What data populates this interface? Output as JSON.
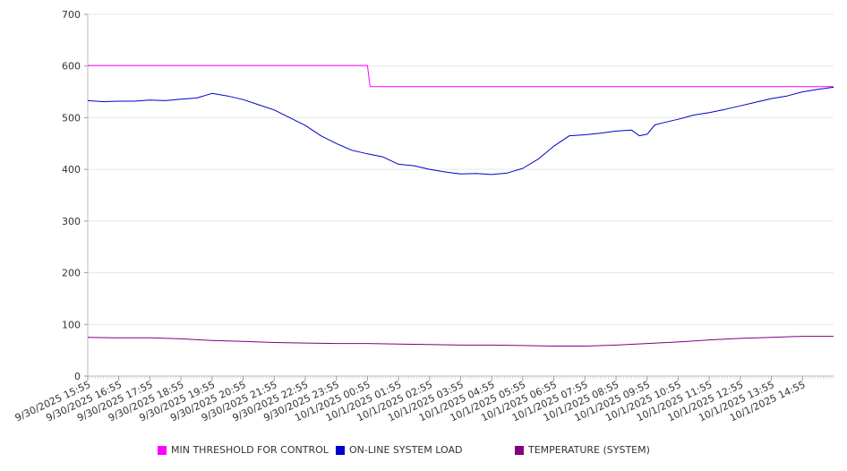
{
  "chart_data": {
    "type": "line",
    "title": "",
    "xlabel": "",
    "ylabel": "",
    "ylim": [
      0,
      700
    ],
    "yticks": [
      0,
      100,
      200,
      300,
      400,
      500,
      600,
      700
    ],
    "grid": true,
    "legend_position": "bottom",
    "x_start": "9/30/2025 15:55",
    "x_end": "10/1/2025 15:55",
    "x_tick_labels": [
      "9/30/2025 15:55",
      "9/30/2025 16:55",
      "9/30/2025 17:55",
      "9/30/2025 18:55",
      "9/30/2025 19:55",
      "9/30/2025 20:55",
      "9/30/2025 21:55",
      "9/30/2025 22:55",
      "9/30/2025 23:55",
      "10/1/2025 00:55",
      "10/1/2025 01:55",
      "10/1/2025 02:55",
      "10/1/2025 03:55",
      "10/1/2025 04:55",
      "10/1/2025 05:55",
      "10/1/2025 06:55",
      "10/1/2025 07:55",
      "10/1/2025 08:55",
      "10/1/2025 09:55",
      "10/1/2025 10:55",
      "10/1/2025 11:55",
      "10/1/2025 12:55",
      "10/1/2025 13:55",
      "10/1/2025 14:55"
    ],
    "series": [
      {
        "name": "MIN THRESHOLD FOR CONTROL",
        "color": "#ff00ff",
        "points": [
          [
            "9/30/2025 15:55",
            601
          ],
          [
            "10/1/2025 00:55",
            601
          ],
          [
            "10/1/2025 01:00",
            560
          ],
          [
            "10/1/2025 15:55",
            560
          ]
        ]
      },
      {
        "name": "ON-LINE SYSTEM LOAD",
        "color": "#0000cc",
        "points": [
          [
            "9/30/2025 15:55",
            533
          ],
          [
            "9/30/2025 16:25",
            531
          ],
          [
            "9/30/2025 16:55",
            532
          ],
          [
            "9/30/2025 17:25",
            532
          ],
          [
            "9/30/2025 17:55",
            534
          ],
          [
            "9/30/2025 18:25",
            533
          ],
          [
            "9/30/2025 18:55",
            536
          ],
          [
            "9/30/2025 19:25",
            538
          ],
          [
            "9/30/2025 19:55",
            547
          ],
          [
            "9/30/2025 20:25",
            542
          ],
          [
            "9/30/2025 20:55",
            535
          ],
          [
            "9/30/2025 21:25",
            525
          ],
          [
            "9/30/2025 21:55",
            515
          ],
          [
            "9/30/2025 22:25",
            500
          ],
          [
            "9/30/2025 22:55",
            485
          ],
          [
            "9/30/2025 23:25",
            465
          ],
          [
            "9/30/2025 23:55",
            450
          ],
          [
            "10/1/2025 00:25",
            437
          ],
          [
            "10/1/2025 00:55",
            430
          ],
          [
            "10/1/2025 01:25",
            424
          ],
          [
            "10/1/2025 01:55",
            410
          ],
          [
            "10/1/2025 02:25",
            407
          ],
          [
            "10/1/2025 02:55",
            400
          ],
          [
            "10/1/2025 03:25",
            395
          ],
          [
            "10/1/2025 03:55",
            391
          ],
          [
            "10/1/2025 04:25",
            392
          ],
          [
            "10/1/2025 04:55",
            390
          ],
          [
            "10/1/2025 05:25",
            393
          ],
          [
            "10/1/2025 05:55",
            402
          ],
          [
            "10/1/2025 06:25",
            420
          ],
          [
            "10/1/2025 06:55",
            445
          ],
          [
            "10/1/2025 07:25",
            465
          ],
          [
            "10/1/2025 07:55",
            467
          ],
          [
            "10/1/2025 08:25",
            470
          ],
          [
            "10/1/2025 08:55",
            474
          ],
          [
            "10/1/2025 09:25",
            476
          ],
          [
            "10/1/2025 09:40",
            465
          ],
          [
            "10/1/2025 09:55",
            468
          ],
          [
            "10/1/2025 10:10",
            486
          ],
          [
            "10/1/2025 10:25",
            490
          ],
          [
            "10/1/2025 10:55",
            497
          ],
          [
            "10/1/2025 11:25",
            505
          ],
          [
            "10/1/2025 11:55",
            510
          ],
          [
            "10/1/2025 12:25",
            516
          ],
          [
            "10/1/2025 12:55",
            523
          ],
          [
            "10/1/2025 13:25",
            530
          ],
          [
            "10/1/2025 13:55",
            537
          ],
          [
            "10/1/2025 14:25",
            542
          ],
          [
            "10/1/2025 14:55",
            550
          ],
          [
            "10/1/2025 15:25",
            555
          ],
          [
            "10/1/2025 15:55",
            559
          ]
        ]
      },
      {
        "name": "TEMPERATURE (SYSTEM)",
        "color": "#800080",
        "points": [
          [
            "9/30/2025 15:55",
            75
          ],
          [
            "9/30/2025 16:55",
            74
          ],
          [
            "9/30/2025 17:55",
            74
          ],
          [
            "9/30/2025 18:55",
            72
          ],
          [
            "9/30/2025 19:55",
            69
          ],
          [
            "9/30/2025 20:55",
            67
          ],
          [
            "9/30/2025 21:55",
            65
          ],
          [
            "9/30/2025 22:55",
            64
          ],
          [
            "9/30/2025 23:55",
            63
          ],
          [
            "10/1/2025 00:55",
            63
          ],
          [
            "10/1/2025 01:55",
            62
          ],
          [
            "10/1/2025 02:55",
            61
          ],
          [
            "10/1/2025 03:55",
            60
          ],
          [
            "10/1/2025 04:55",
            60
          ],
          [
            "10/1/2025 05:55",
            59
          ],
          [
            "10/1/2025 06:55",
            58
          ],
          [
            "10/1/2025 07:55",
            58
          ],
          [
            "10/1/2025 08:55",
            60
          ],
          [
            "10/1/2025 09:55",
            63
          ],
          [
            "10/1/2025 10:55",
            66
          ],
          [
            "10/1/2025 11:55",
            70
          ],
          [
            "10/1/2025 12:55",
            73
          ],
          [
            "10/1/2025 13:55",
            75
          ],
          [
            "10/1/2025 14:55",
            77
          ],
          [
            "10/1/2025 15:55",
            77
          ]
        ]
      }
    ]
  }
}
